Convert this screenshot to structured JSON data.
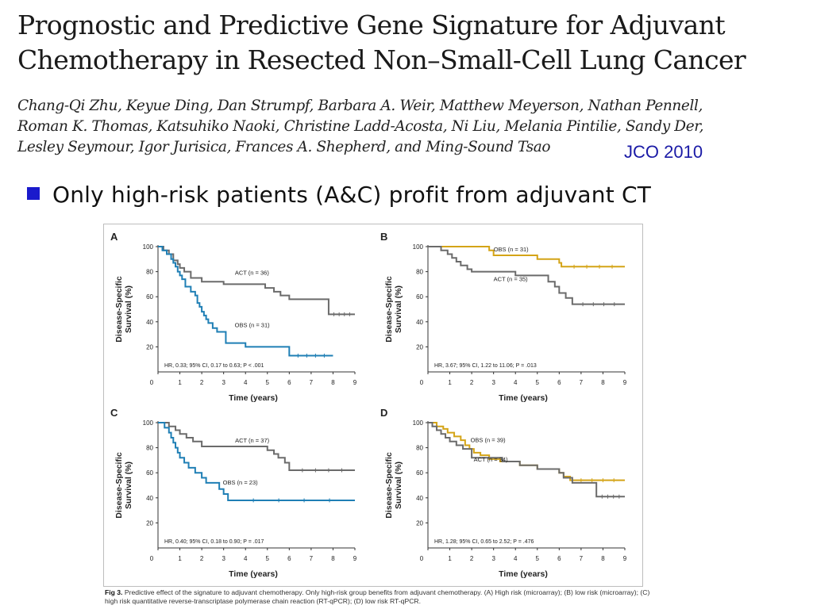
{
  "header": {
    "title_line1": "Prognostic and Predictive Gene Signature for Adjuvant",
    "title_line2": "Chemotherapy in Resected Non–Small-Cell Lung Cancer",
    "authors_line1": "Chang-Qi Zhu, Keyue Ding, Dan Strumpf, Barbara A. Weir, Matthew Meyerson, Nathan Pennell,",
    "authors_line2": "Roman K. Thomas, Katsuhiko Naoki, Christine Ladd-Acosta, Ni Liu, Melania Pintilie, Sandy Der,",
    "authors_line3": "Lesley Seymour, Igor Jurisica, Frances A. Shepherd, and Ming-Sound Tsao",
    "journal": "JCO 2010"
  },
  "bullet": {
    "text": "Only high-risk patients (A&C) profit from adjuvant CT",
    "bullet_color": "#1a1acc"
  },
  "caption": {
    "label": "Fig 3.",
    "text": "Predictive effect of the signature to adjuvant chemotherapy. Only high-risk group benefits from adjuvant chemotherapy. (A) High risk (microarray); (B) low risk (microarray); (C) high risk quantitative reverse-transcriptase polymerase chain reaction (RT-qPCR); (D) low risk RT-qPCR."
  },
  "colors": {
    "act": "#6b6b6b",
    "obs_blue": "#1f7fb5",
    "obs_gold": "#d4a417"
  },
  "chart_data": [
    {
      "panel": "A",
      "type": "line",
      "xlabel": "Time (years)",
      "ylabel": "Disease-Specific Survival (%)",
      "xlim": [
        0,
        9
      ],
      "ylim": [
        0,
        100
      ],
      "xticks": [
        0,
        1,
        2,
        3,
        4,
        5,
        6,
        7,
        8,
        9
      ],
      "yticks": [
        20,
        40,
        60,
        80,
        100
      ],
      "stats": "HR, 0.33; 95% CI, 0.17 to 0.63; P < .001",
      "series": [
        {
          "name": "ACT (n = 36)",
          "color": "#6b6b6b",
          "x": [
            0,
            0.25,
            0.5,
            0.7,
            0.9,
            1.0,
            1.2,
            1.5,
            2.0,
            3.0,
            4.0,
            4.9,
            5.3,
            5.6,
            6.0,
            7.8,
            9.0
          ],
          "y": [
            100,
            97,
            94,
            89,
            86,
            83,
            80,
            75,
            72,
            70,
            70,
            67,
            64,
            61,
            58,
            46,
            46
          ]
        },
        {
          "name": "OBS (n = 31)",
          "color": "#1f7fb5",
          "x": [
            0,
            0.2,
            0.4,
            0.6,
            0.7,
            0.8,
            0.9,
            1.0,
            1.1,
            1.25,
            1.5,
            1.7,
            1.8,
            1.9,
            2.0,
            2.1,
            2.2,
            2.3,
            2.5,
            2.7,
            3.1,
            4.0,
            5.0,
            6.0,
            8.0
          ],
          "y": [
            100,
            97,
            94,
            90,
            87,
            84,
            80,
            77,
            74,
            68,
            64,
            61,
            55,
            52,
            48,
            45,
            42,
            39,
            35,
            32,
            23,
            20,
            20,
            13,
            13
          ]
        }
      ]
    },
    {
      "panel": "B",
      "type": "line",
      "xlabel": "Time (years)",
      "ylabel": "Disease-Specific Survival (%)",
      "xlim": [
        0,
        9
      ],
      "ylim": [
        0,
        100
      ],
      "xticks": [
        0,
        1,
        2,
        3,
        4,
        5,
        6,
        7,
        8,
        9
      ],
      "yticks": [
        20,
        40,
        60,
        80,
        100
      ],
      "stats": "HR, 3.67; 95% CI, 1.22 to 11.06; P = .013",
      "series": [
        {
          "name": "OBS (n = 31)",
          "color": "#d4a417",
          "x": [
            0,
            2.5,
            2.8,
            3.0,
            4.8,
            5.0,
            5.9,
            6.0,
            6.1,
            9.0
          ],
          "y": [
            100,
            100,
            97,
            93,
            93,
            90,
            90,
            87,
            84,
            84
          ]
        },
        {
          "name": "ACT (n = 35)",
          "color": "#6b6b6b",
          "x": [
            0,
            0.6,
            0.9,
            1.1,
            1.3,
            1.5,
            1.8,
            2.0,
            3.0,
            4.0,
            5.0,
            5.5,
            5.8,
            6.0,
            6.3,
            6.6,
            9.0
          ],
          "y": [
            100,
            97,
            94,
            91,
            88,
            85,
            82,
            80,
            80,
            77,
            77,
            72,
            68,
            63,
            59,
            54,
            54
          ]
        }
      ]
    },
    {
      "panel": "C",
      "type": "line",
      "xlabel": "Time (years)",
      "ylabel": "Disease-Specific Survival (%)",
      "xlim": [
        0,
        9
      ],
      "ylim": [
        0,
        100
      ],
      "xticks": [
        0,
        1,
        2,
        3,
        4,
        5,
        6,
        7,
        8,
        9
      ],
      "yticks": [
        20,
        40,
        60,
        80,
        100
      ],
      "stats": "HR, 0.40; 95% CI, 0.18 to 0.90; P = .017",
      "series": [
        {
          "name": "ACT (n = 37)",
          "color": "#6b6b6b",
          "x": [
            0,
            0.5,
            0.8,
            1.0,
            1.3,
            1.6,
            2.0,
            4.9,
            5.0,
            5.3,
            5.5,
            5.8,
            6.0,
            9.0
          ],
          "y": [
            100,
            97,
            94,
            91,
            88,
            85,
            81,
            81,
            78,
            75,
            72,
            68,
            62,
            62
          ]
        },
        {
          "name": "OBS (n = 23)",
          "color": "#1f7fb5",
          "x": [
            0,
            0.3,
            0.5,
            0.6,
            0.7,
            0.8,
            0.9,
            1.0,
            1.2,
            1.4,
            1.7,
            2.0,
            2.2,
            2.6,
            2.8,
            3.0,
            3.2,
            9.0
          ],
          "y": [
            100,
            96,
            92,
            88,
            84,
            80,
            76,
            72,
            68,
            64,
            60,
            56,
            52,
            52,
            47,
            43,
            38,
            38
          ]
        }
      ]
    },
    {
      "panel": "D",
      "type": "line",
      "xlabel": "Time (years)",
      "ylabel": "Disease-Specific Survival (%)",
      "xlim": [
        0,
        9
      ],
      "ylim": [
        0,
        100
      ],
      "xticks": [
        0,
        1,
        2,
        3,
        4,
        5,
        6,
        7,
        8,
        9
      ],
      "yticks": [
        20,
        40,
        60,
        80,
        100
      ],
      "stats": "HR, 1.28; 95% CI, 0.65 to 2.52; P = .476",
      "series": [
        {
          "name": "OBS (n = 39)",
          "color": "#d4a417",
          "x": [
            0,
            0.4,
            0.7,
            0.9,
            1.2,
            1.5,
            1.7,
            1.9,
            2.1,
            2.4,
            2.8,
            3.3,
            4.2,
            5.0,
            6.0,
            6.2,
            6.5,
            9.0
          ],
          "y": [
            100,
            97,
            95,
            92,
            89,
            86,
            82,
            79,
            76,
            74,
            71,
            69,
            66,
            63,
            60,
            57,
            54,
            54
          ]
        },
        {
          "name": "ACT (n = 34)",
          "color": "#6b6b6b",
          "x": [
            0,
            0.2,
            0.4,
            0.6,
            0.8,
            1.0,
            1.3,
            1.6,
            2.0,
            3.0,
            3.4,
            4.2,
            5.0,
            6.0,
            6.2,
            6.6,
            7.7,
            9.0
          ],
          "y": [
            100,
            97,
            94,
            91,
            88,
            85,
            82,
            79,
            72,
            72,
            69,
            66,
            63,
            60,
            56,
            52,
            41,
            41
          ]
        }
      ]
    }
  ]
}
